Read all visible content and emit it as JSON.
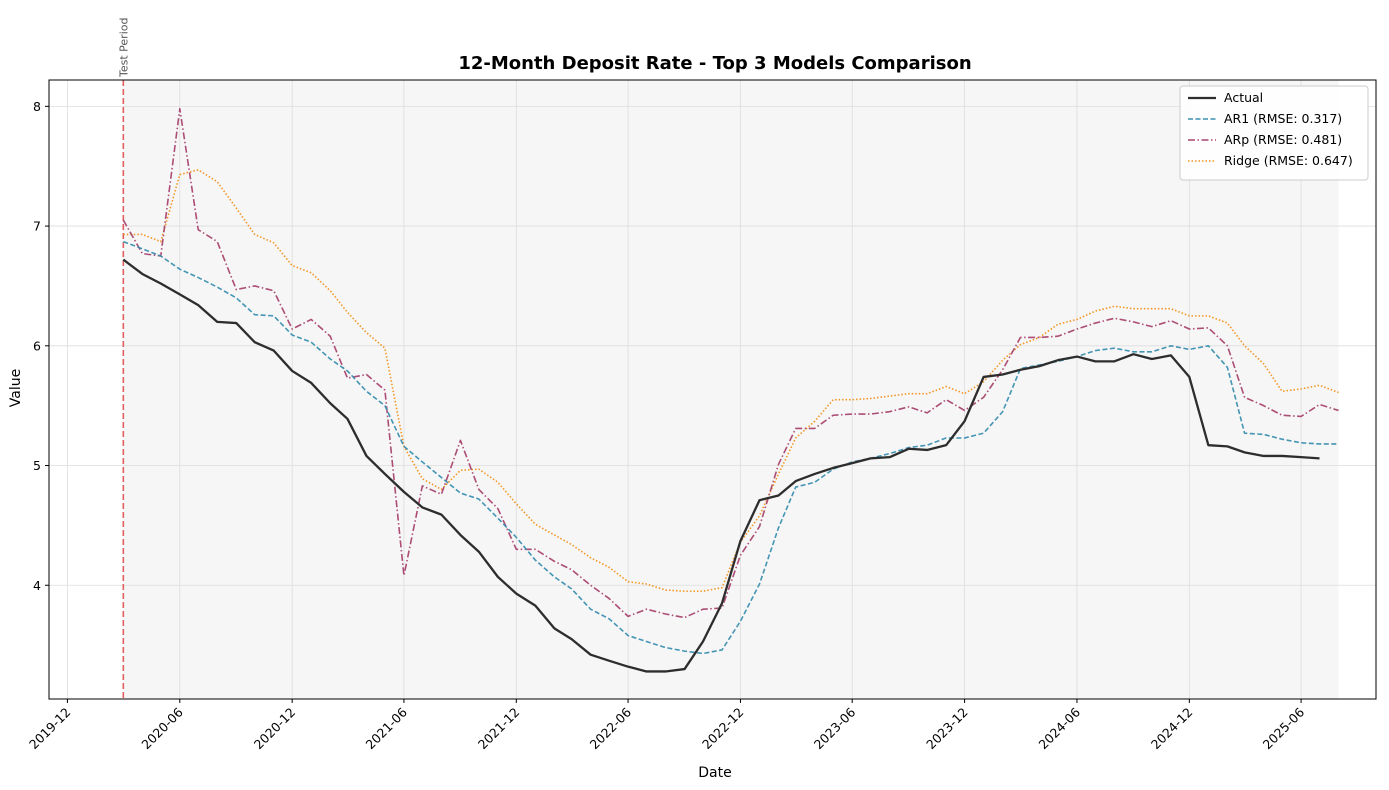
{
  "chart_data": {
    "type": "line",
    "title": "12-Month Deposit Rate - Top 3 Models Comparison",
    "xlabel": "Date",
    "ylabel": "Value",
    "x_range": [
      "2019-11-01",
      "2025-10-01"
    ],
    "ylim": [
      3.05,
      8.22
    ],
    "grid": true,
    "legend_position": "top-right",
    "x_ticks": [
      "2019-12",
      "2020-06",
      "2020-12",
      "2021-06",
      "2021-12",
      "2022-06",
      "2022-12",
      "2023-06",
      "2023-12",
      "2024-06",
      "2024-12",
      "2025-06"
    ],
    "y_ticks": [
      4,
      5,
      6,
      7,
      8
    ],
    "annotation": {
      "text": "Test Period",
      "date": "2020-03-01",
      "color": "#e06060"
    },
    "shaded_region": {
      "start": "2020-03-01",
      "end": "2025-08-01"
    },
    "dates": [
      "2020-03",
      "2020-04",
      "2020-05",
      "2020-06",
      "2020-07",
      "2020-08",
      "2020-09",
      "2020-10",
      "2020-11",
      "2020-12",
      "2021-01",
      "2021-02",
      "2021-03",
      "2021-04",
      "2021-05",
      "2021-06",
      "2021-07",
      "2021-08",
      "2021-09",
      "2021-10",
      "2021-11",
      "2021-12",
      "2022-01",
      "2022-02",
      "2022-03",
      "2022-04",
      "2022-05",
      "2022-06",
      "2022-07",
      "2022-08",
      "2022-09",
      "2022-10",
      "2022-11",
      "2022-12",
      "2023-01",
      "2023-02",
      "2023-03",
      "2023-04",
      "2023-05",
      "2023-06",
      "2023-07",
      "2023-08",
      "2023-09",
      "2023-10",
      "2023-11",
      "2023-12",
      "2024-01",
      "2024-02",
      "2024-03",
      "2024-04",
      "2024-05",
      "2024-06",
      "2024-07",
      "2024-08",
      "2024-09",
      "2024-10",
      "2024-11",
      "2024-12",
      "2025-01",
      "2025-02",
      "2025-03",
      "2025-04",
      "2025-05",
      "2025-06",
      "2025-07",
      "2025-08"
    ],
    "series": [
      {
        "name": "Actual",
        "color": "#2d2d2d",
        "style": "solid",
        "values": [
          6.72,
          6.6,
          6.52,
          6.43,
          6.34,
          6.2,
          6.19,
          6.03,
          5.96,
          5.79,
          5.69,
          5.52,
          5.39,
          5.08,
          4.93,
          4.78,
          4.65,
          4.59,
          4.42,
          4.28,
          4.07,
          3.93,
          3.83,
          3.64,
          3.55,
          3.42,
          3.37,
          3.32,
          3.28,
          3.28,
          3.3,
          3.53,
          3.85,
          4.37,
          4.71,
          4.75,
          4.87,
          4.93,
          4.98,
          5.02,
          5.06,
          5.07,
          5.14,
          5.13,
          5.17,
          5.37,
          5.74,
          5.76,
          5.8,
          5.83,
          5.88,
          5.91,
          5.87,
          5.87,
          5.93,
          5.89,
          5.92,
          5.74,
          5.17,
          5.16,
          5.11,
          5.08,
          5.08,
          5.07,
          5.06,
          null
        ]
      },
      {
        "name": "AR1 (RMSE: 0.317)",
        "color": "#3a8fb0",
        "style": "dashed",
        "values": [
          6.87,
          6.81,
          6.75,
          6.64,
          6.57,
          6.49,
          6.4,
          6.26,
          6.25,
          6.09,
          6.03,
          5.89,
          5.79,
          5.62,
          5.5,
          5.16,
          5.03,
          4.9,
          4.77,
          4.72,
          4.56,
          4.4,
          4.21,
          4.07,
          3.97,
          3.8,
          3.72,
          3.58,
          3.53,
          3.48,
          3.45,
          3.43,
          3.46,
          3.7,
          4.01,
          4.48,
          4.82,
          4.86,
          4.97,
          5.03,
          5.06,
          5.1,
          5.15,
          5.17,
          5.23,
          5.23,
          5.27,
          5.45,
          5.81,
          5.84,
          5.87,
          5.91,
          5.96,
          5.98,
          5.95,
          5.95,
          6.0,
          5.97,
          6.0,
          5.82,
          5.27,
          5.26,
          5.22,
          5.19,
          5.18,
          5.18
        ]
      },
      {
        "name": "ARp (RMSE: 0.481)",
        "color": "#a8436e",
        "style": "dashdot",
        "values": [
          7.05,
          6.77,
          6.75,
          7.98,
          6.97,
          6.87,
          6.47,
          6.5,
          6.46,
          6.14,
          6.22,
          6.08,
          5.73,
          5.76,
          5.63,
          4.08,
          4.83,
          4.76,
          5.21,
          4.8,
          4.64,
          4.3,
          4.3,
          4.2,
          4.13,
          4.0,
          3.89,
          3.74,
          3.8,
          3.76,
          3.73,
          3.8,
          3.81,
          4.25,
          4.49,
          5.01,
          5.31,
          5.31,
          5.42,
          5.43,
          5.43,
          5.45,
          5.49,
          5.44,
          5.55,
          5.46,
          5.57,
          5.8,
          6.07,
          6.07,
          6.08,
          6.14,
          6.19,
          6.23,
          6.2,
          6.16,
          6.21,
          6.14,
          6.15,
          6.0,
          5.57,
          5.5,
          5.42,
          5.41,
          5.51,
          5.46
        ]
      },
      {
        "name": "Ridge (RMSE: 0.647)",
        "color": "#f29018",
        "style": "dotted",
        "values": [
          6.93,
          6.93,
          6.87,
          7.43,
          7.47,
          7.37,
          7.15,
          6.93,
          6.86,
          6.67,
          6.61,
          6.46,
          6.28,
          6.11,
          5.98,
          5.16,
          4.89,
          4.8,
          4.96,
          4.97,
          4.86,
          4.68,
          4.51,
          4.42,
          4.34,
          4.23,
          4.15,
          4.03,
          4.01,
          3.96,
          3.95,
          3.95,
          3.98,
          4.36,
          4.58,
          4.93,
          5.23,
          5.37,
          5.55,
          5.55,
          5.56,
          5.58,
          5.6,
          5.6,
          5.66,
          5.6,
          5.7,
          5.88,
          6.01,
          6.07,
          6.18,
          6.22,
          6.29,
          6.33,
          6.31,
          6.31,
          6.31,
          6.25,
          6.25,
          6.19,
          6.0,
          5.85,
          5.62,
          5.64,
          5.67,
          5.61
        ]
      }
    ]
  }
}
